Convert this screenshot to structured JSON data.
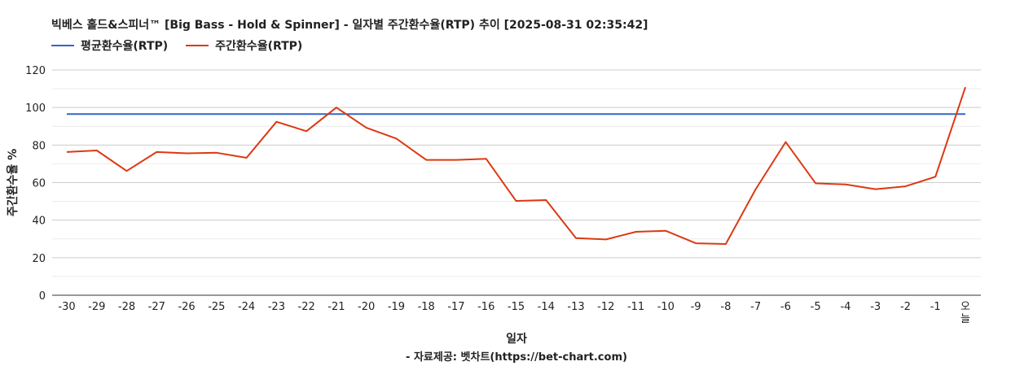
{
  "chart_data": {
    "type": "line",
    "title": "빅베스 홀드&스피너™ [Big Bass - Hold & Spinner] - 일자별 주간환수율(RTP) 추이 [2025-08-31 02:35:42]",
    "xlabel": "일자",
    "ylabel": "주간환수율 %",
    "ylim": [
      0,
      120
    ],
    "yticks": [
      0,
      20,
      40,
      60,
      80,
      100,
      120
    ],
    "grid": true,
    "legend_position": "top-left",
    "categories": [
      "-30",
      "-29",
      "-28",
      "-27",
      "-26",
      "-25",
      "-24",
      "-23",
      "-22",
      "-21",
      "-20",
      "-19",
      "-18",
      "-17",
      "-16",
      "-15",
      "-14",
      "-13",
      "-12",
      "-11",
      "-10",
      "-9",
      "-8",
      "-7",
      "-6",
      "-5",
      "-4",
      "-3",
      "-2",
      "-1",
      "오늘"
    ],
    "series": [
      {
        "name": "평균환수율(RTP)",
        "color": "#3366cc",
        "values": [
          96.5,
          96.5,
          96.5,
          96.5,
          96.5,
          96.5,
          96.5,
          96.5,
          96.5,
          96.5,
          96.5,
          96.5,
          96.5,
          96.5,
          96.5,
          96.5,
          96.5,
          96.5,
          96.5,
          96.5,
          96.5,
          96.5,
          96.5,
          96.5,
          96.5,
          96.5,
          96.5,
          96.5,
          96.5,
          96.5,
          96.5
        ]
      },
      {
        "name": "주간환수율(RTP)",
        "color": "#dc3912",
        "values": [
          76.3,
          77.1,
          66.2,
          76.3,
          75.6,
          75.9,
          73.2,
          92.4,
          87.4,
          100.0,
          89.2,
          83.5,
          72.1,
          72.1,
          72.7,
          50.2,
          50.7,
          30.4,
          29.7,
          33.8,
          34.3,
          27.7,
          27.3,
          56.5,
          81.6,
          59.6,
          59.0,
          56.5,
          58.0,
          63.1,
          110.8
        ]
      }
    ]
  },
  "source": "- 자료제공: 벳차트(https://bet-chart.com)"
}
